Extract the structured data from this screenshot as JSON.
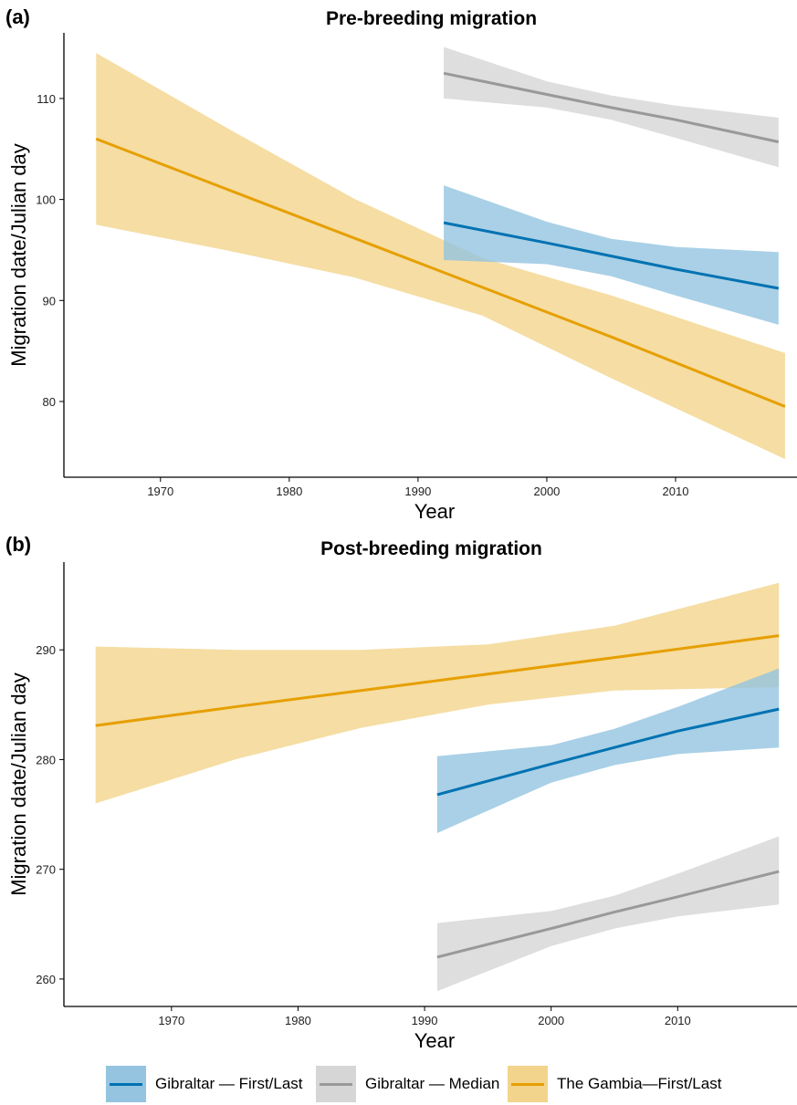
{
  "panels": [
    {
      "tag": "(a)",
      "title": "Pre-breeding migration",
      "chart_data": {
        "type": "line",
        "title": "Pre-breeding migration",
        "xlabel": "Year",
        "ylabel": "Migration date/Julian day",
        "xlim": [
          1962.5,
          2019.5
        ],
        "ylim": [
          72.5,
          116.5
        ],
        "xticks": [
          1970,
          1980,
          1990,
          2000,
          2010
        ],
        "yticks": [
          80,
          90,
          100,
          110
        ],
        "grid": false,
        "series": [
          {
            "name": "The Gambia—First/Last",
            "line_color": "#E69F00",
            "band_color": "#F2D48C",
            "x": [
              1965,
              1975,
              1985,
              1995,
              2005,
              2018.5
            ],
            "y": [
              106.0,
              101.1,
              96.2,
              91.3,
              86.4,
              79.5
            ],
            "lower": [
              97.5,
              95.0,
              92.3,
              88.5,
              82.3,
              74.3
            ],
            "upper": [
              114.5,
              107.2,
              100.1,
              94.2,
              90.5,
              84.8
            ]
          },
          {
            "name": "Gibraltar — First/Last",
            "line_color": "#0072B2",
            "band_color": "#94C4E0",
            "x": [
              1992,
              2000,
              2005,
              2010,
              2018
            ],
            "y": [
              97.7,
              95.7,
              94.4,
              93.1,
              91.2
            ],
            "lower": [
              94.0,
              93.6,
              92.4,
              90.5,
              87.6
            ],
            "upper": [
              101.4,
              97.8,
              96.1,
              95.3,
              94.8
            ]
          },
          {
            "name": "Gibraltar — Median",
            "line_color": "#999999",
            "band_color": "#D6D6D6",
            "x": [
              1992,
              2000,
              2005,
              2010,
              2018
            ],
            "y": [
              112.5,
              110.4,
              109.1,
              107.9,
              105.7
            ],
            "lower": [
              110.0,
              109.1,
              107.9,
              106.1,
              103.2
            ],
            "upper": [
              115.1,
              111.7,
              110.3,
              109.3,
              108.1
            ]
          }
        ]
      }
    },
    {
      "tag": "(b)",
      "title": "Post-breeding migration",
      "chart_data": {
        "type": "line",
        "title": "Post-breeding migration",
        "xlabel": "Year",
        "ylabel": "Migration date/Julian day",
        "xlim": [
          1961.5,
          2019.5
        ],
        "ylim": [
          257.5,
          298
        ],
        "xticks": [
          1970,
          1980,
          1990,
          2000,
          2010
        ],
        "yticks": [
          260,
          270,
          280,
          290
        ],
        "grid": false,
        "series": [
          {
            "name": "The Gambia—First/Last",
            "line_color": "#E69F00",
            "band_color": "#F2D48C",
            "x": [
              1964,
              1975,
              1985,
              1995,
              2005,
              2018
            ],
            "y": [
              283.1,
              284.8,
              286.3,
              287.8,
              289.3,
              291.3
            ],
            "lower": [
              276.0,
              280.0,
              282.9,
              285.0,
              286.3,
              286.6
            ],
            "upper": [
              290.3,
              290.0,
              290.0,
              290.5,
              292.2,
              296.1
            ]
          },
          {
            "name": "Gibraltar — First/Last",
            "line_color": "#0072B2",
            "band_color": "#94C4E0",
            "x": [
              1991,
              2000,
              2005,
              2010,
              2018
            ],
            "y": [
              276.8,
              279.6,
              281.1,
              282.6,
              284.6
            ],
            "lower": [
              273.3,
              277.9,
              279.5,
              280.5,
              281.1
            ],
            "upper": [
              280.3,
              281.3,
              282.8,
              284.8,
              288.3
            ]
          },
          {
            "name": "Gibraltar — Median",
            "line_color": "#999999",
            "band_color": "#D6D6D6",
            "x": [
              1991,
              2000,
              2005,
              2010,
              2018
            ],
            "y": [
              262.0,
              264.6,
              266.1,
              267.5,
              269.8
            ],
            "lower": [
              258.9,
              263.0,
              264.6,
              265.7,
              266.8
            ],
            "upper": [
              265.1,
              266.2,
              267.6,
              269.6,
              273.0
            ]
          }
        ]
      }
    }
  ],
  "legend": {
    "placement": "bottom",
    "entries": [
      {
        "label": "Gibraltar — First/Last",
        "line_color": "#0072B2",
        "band_color": "#94C4E0"
      },
      {
        "label": "Gibraltar — Median",
        "line_color": "#999999",
        "band_color": "#D6D6D6"
      },
      {
        "label": "The Gambia—First/Last",
        "line_color": "#E69F00",
        "band_color": "#F2D48C"
      }
    ]
  }
}
